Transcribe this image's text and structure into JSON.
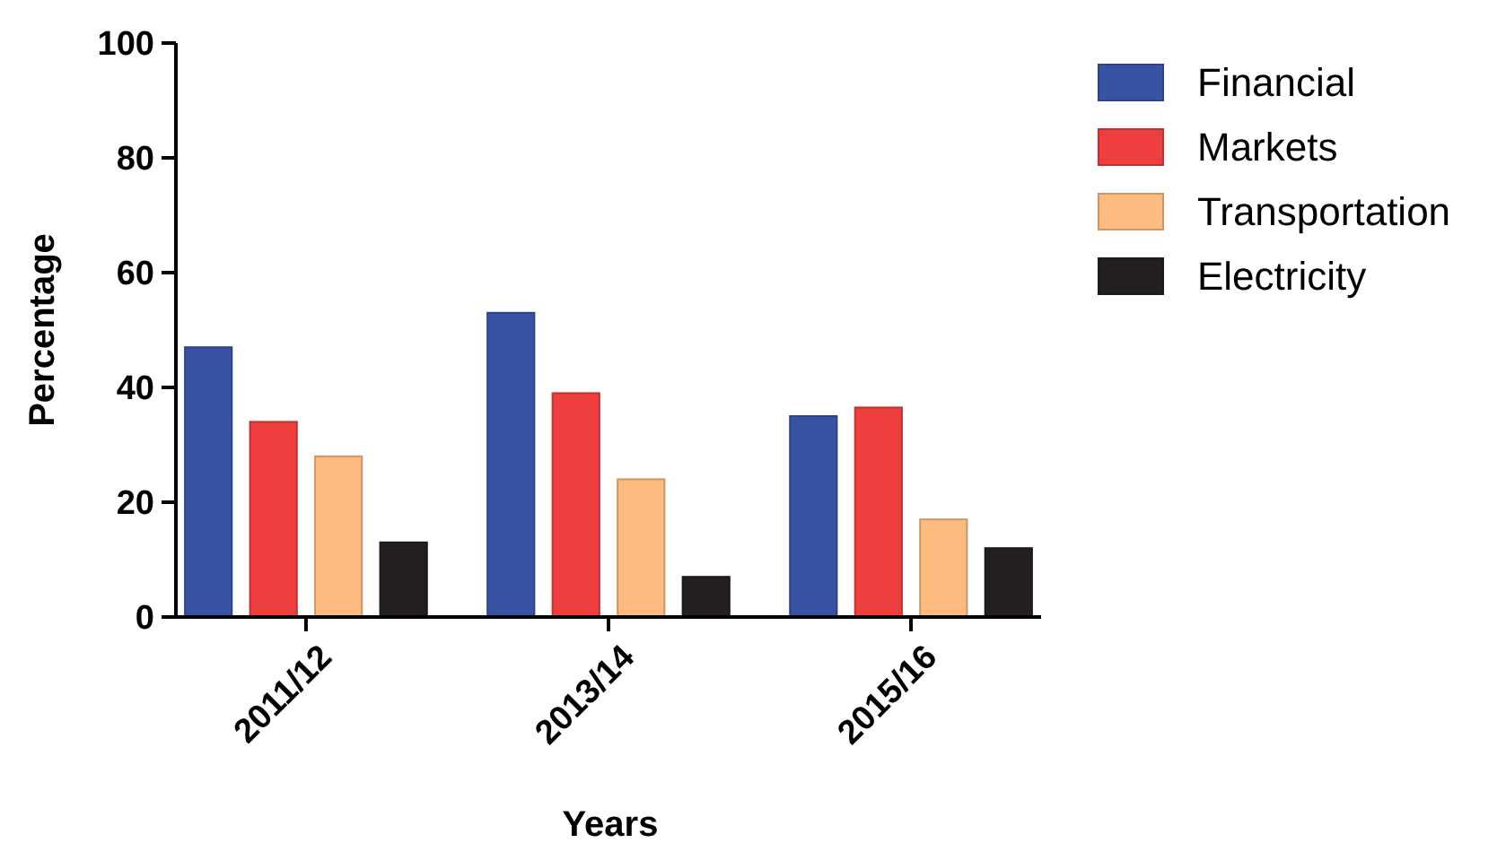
{
  "chart_data": {
    "type": "bar",
    "xlabel": "Years",
    "ylabel": "Percentage",
    "categories": [
      "2011/12",
      "2013/14",
      "2015/16"
    ],
    "series": [
      {
        "name": "Financial",
        "color": "#3953a4",
        "values": [
          47,
          53,
          35
        ]
      },
      {
        "name": "Markets",
        "color": "#ee3e3e",
        "values": [
          34,
          39,
          36.5
        ]
      },
      {
        "name": "Transportation",
        "color": "#fdbb7f",
        "values": [
          28,
          24,
          17
        ]
      },
      {
        "name": "Electricity",
        "color": "#231f20",
        "values": [
          13,
          7,
          12
        ]
      }
    ],
    "ylim": [
      0,
      100
    ],
    "yticks": [
      0,
      20,
      40,
      60,
      80,
      100
    ],
    "legend": "right",
    "grid": false
  }
}
